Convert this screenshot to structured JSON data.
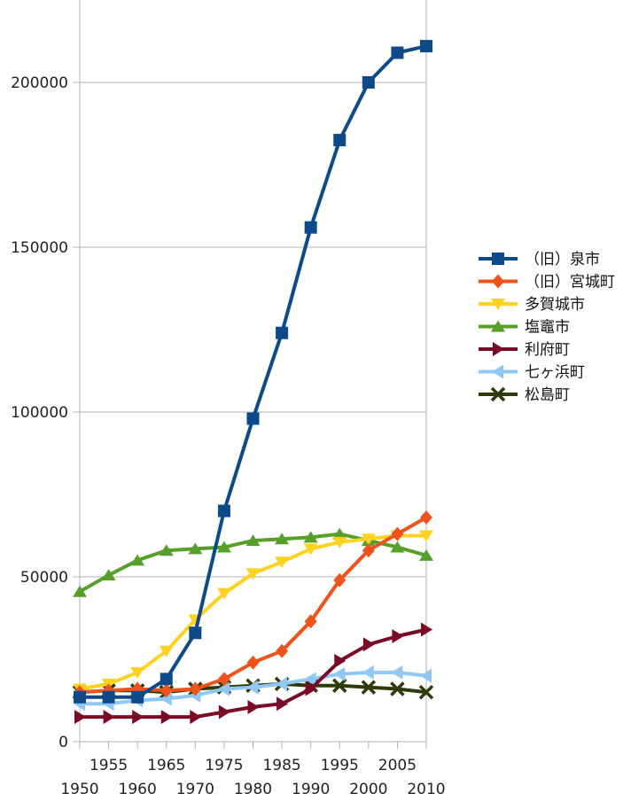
{
  "chart_data": {
    "type": "line",
    "title": "",
    "xlabel": "",
    "ylabel": "",
    "x": [
      1950,
      1955,
      1960,
      1965,
      1970,
      1975,
      1980,
      1985,
      1990,
      1995,
      2000,
      2005,
      2010
    ],
    "x_tick_labels_upper": [
      "1955",
      "1965",
      "1975",
      "1985",
      "1995",
      "2005"
    ],
    "x_tick_labels_lower": [
      "1950",
      "1960",
      "1970",
      "1980",
      "1990",
      "2000",
      "2010"
    ],
    "y_tick_labels": [
      "0",
      "50000",
      "100000",
      "150000",
      "200000"
    ],
    "ylim": [
      0,
      225000
    ],
    "y_ticks": [
      0,
      50000,
      100000,
      150000,
      200000
    ],
    "grid": "horizontal",
    "legend_position": "right",
    "series": [
      {
        "name": "（旧）泉市",
        "color": "#0e4a8a",
        "marker": "square",
        "values": [
          13500,
          13500,
          13500,
          19000,
          33000,
          70000,
          98000,
          124000,
          156000,
          182500,
          200000,
          209000,
          211000
        ]
      },
      {
        "name": "（旧）宮城町",
        "color": "#f0521c",
        "marker": "diamond",
        "values": [
          15000,
          15500,
          16000,
          15500,
          16000,
          19000,
          24000,
          27500,
          36500,
          49000,
          58000,
          63000,
          68000
        ]
      },
      {
        "name": "多賀城市",
        "color": "#ffd21f",
        "marker": "triangle-down",
        "values": [
          16000,
          17500,
          21000,
          27500,
          37000,
          45000,
          51000,
          54500,
          58500,
          60500,
          61500,
          62500,
          62500
        ]
      },
      {
        "name": "塩竈市",
        "color": "#56a02a",
        "marker": "triangle-up",
        "values": [
          45500,
          50500,
          55000,
          58000,
          58500,
          59000,
          61000,
          61500,
          62000,
          63000,
          61000,
          59000,
          56500
        ]
      },
      {
        "name": "利府町",
        "color": "#7a0a26",
        "marker": "triangle-right",
        "values": [
          7500,
          7500,
          7500,
          7500,
          7500,
          9000,
          10500,
          11500,
          16000,
          24500,
          29500,
          32000,
          34000
        ]
      },
      {
        "name": "七ヶ浜町",
        "color": "#8fc8f4",
        "marker": "triangle-left",
        "values": [
          11500,
          11500,
          12500,
          13000,
          14000,
          16000,
          16500,
          17500,
          19000,
          20500,
          21000,
          21000,
          20000
        ]
      },
      {
        "name": "松島町",
        "color": "#2e3a0a",
        "marker": "x",
        "values": [
          15000,
          15500,
          15500,
          15000,
          16000,
          16500,
          17000,
          17500,
          17000,
          17000,
          16500,
          16000,
          15000
        ]
      }
    ]
  }
}
